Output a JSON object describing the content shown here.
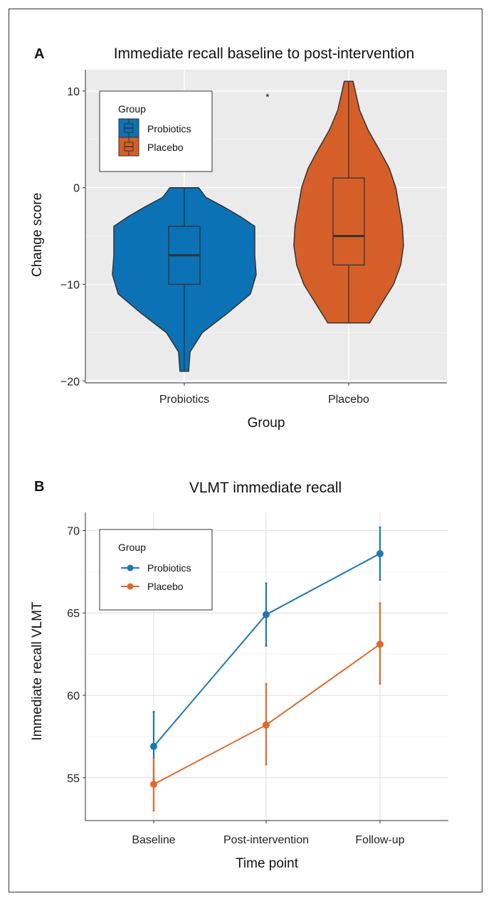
{
  "chart_data": [
    {
      "panel_label": "A",
      "type": "violin",
      "title": "Immediate recall baseline to post-intervention",
      "xlabel": "Group",
      "ylabel": "Change score",
      "ylim": [
        -20.2,
        12.2
      ],
      "yticks": [
        -20,
        -10,
        0,
        10
      ],
      "ytick_labels": [
        "−20",
        "−10",
        "0",
        "10"
      ],
      "categories": [
        "Probiotics",
        "Placebo"
      ],
      "legend": {
        "title": "Group",
        "position": "top-left",
        "entries": [
          "Probiotics",
          "Placebo"
        ]
      },
      "annotation": "*",
      "series": [
        {
          "name": "Probiotics",
          "color": "#0b72b5",
          "min": -19,
          "q1": -10,
          "median": -7,
          "q3": -4,
          "max": 0,
          "density": [
            [
              -19,
              0.06
            ],
            [
              -17,
              0.08
            ],
            [
              -15,
              0.25
            ],
            [
              -13,
              0.6
            ],
            [
              -11,
              0.92
            ],
            [
              -9,
              1.0
            ],
            [
              -7,
              0.98
            ],
            [
              -5,
              0.98
            ],
            [
              -4,
              0.98
            ],
            [
              -3,
              0.78
            ],
            [
              -2,
              0.55
            ],
            [
              -1,
              0.3
            ],
            [
              0,
              0.2
            ]
          ]
        },
        {
          "name": "Placebo",
          "color": "#d65f29",
          "min": -14,
          "q1": -8,
          "median": -5,
          "q3": 1,
          "max": 11,
          "density": [
            [
              -14,
              0.38
            ],
            [
              -12,
              0.6
            ],
            [
              -10,
              0.82
            ],
            [
              -8,
              0.95
            ],
            [
              -6,
              1.0
            ],
            [
              -4,
              0.98
            ],
            [
              -2,
              0.92
            ],
            [
              0,
              0.86
            ],
            [
              2,
              0.74
            ],
            [
              4,
              0.55
            ],
            [
              6,
              0.35
            ],
            [
              8,
              0.2
            ],
            [
              10,
              0.12
            ],
            [
              11,
              0.08
            ]
          ]
        }
      ]
    },
    {
      "panel_label": "B",
      "type": "line",
      "title": "VLMT immediate recall",
      "xlabel": "Time point",
      "ylabel": "Immediate recall VLMT",
      "ylim": [
        52.4,
        71.1
      ],
      "yticks": [
        55,
        60,
        65,
        70
      ],
      "ytick_labels": [
        "55",
        "60",
        "65",
        "70"
      ],
      "categories": [
        "Baseline",
        "Post-intervention",
        "Follow-up"
      ],
      "legend": {
        "title": "Group",
        "position": "top-left",
        "entries": [
          "Probiotics",
          "Placebo"
        ]
      },
      "series": [
        {
          "name": "Probiotics",
          "color": "#1f77b4",
          "values": [
            56.9,
            64.9,
            68.6
          ],
          "error_low": [
            54.9,
            63.0,
            67.0
          ],
          "error_high": [
            59.0,
            66.8,
            70.2
          ]
        },
        {
          "name": "Placebo",
          "color": "#e06a2c",
          "values": [
            54.6,
            58.2,
            63.1
          ],
          "error_low": [
            53.0,
            55.8,
            60.7
          ],
          "error_high": [
            56.2,
            60.7,
            65.6
          ]
        }
      ]
    }
  ]
}
